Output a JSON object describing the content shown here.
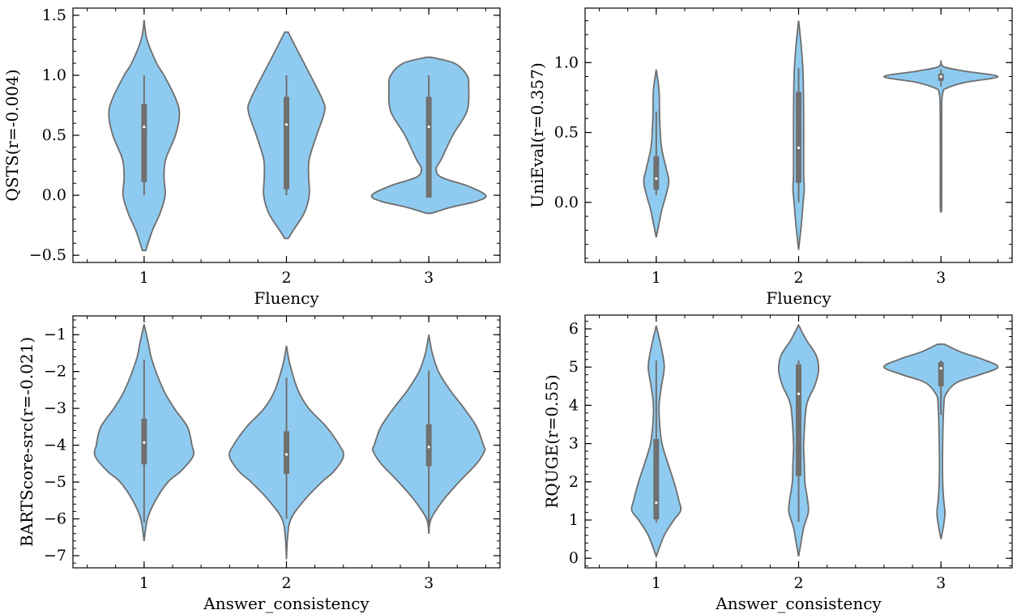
{
  "chart_data": [
    {
      "type": "violin",
      "xlabel": "Fluency",
      "ylabel": "QSTS(r=-0.004)",
      "categories": [
        "1",
        "2",
        "3"
      ],
      "ylim": [
        -0.56,
        1.56
      ],
      "xlim": [
        0.5,
        3.5
      ],
      "yticks": [
        -0.5,
        0.0,
        0.5,
        1.0,
        1.5
      ],
      "ytick_labels": [
        "−0.5",
        "0.0",
        "0.5",
        "1.0",
        "1.5"
      ],
      "yminor": 0.1,
      "violins": [
        {
          "profile": [
            [
              1.46,
              0
            ],
            [
              1.3,
              0.05
            ],
            [
              1.1,
              0.22
            ],
            [
              1.0,
              0.35
            ],
            [
              0.8,
              0.56
            ],
            [
              0.67,
              0.62
            ],
            [
              0.5,
              0.55
            ],
            [
              0.3,
              0.38
            ],
            [
              0.15,
              0.35
            ],
            [
              0.0,
              0.37
            ],
            [
              -0.15,
              0.28
            ],
            [
              -0.3,
              0.14
            ],
            [
              -0.46,
              0.03
            ]
          ],
          "box": {
            "whisker_low": 0.0,
            "q1": 0.11,
            "median": 0.57,
            "q3": 0.76,
            "whisker_high": 1.0
          }
        },
        {
          "profile": [
            [
              1.36,
              0.03
            ],
            [
              1.2,
              0.2
            ],
            [
              1.0,
              0.42
            ],
            [
              0.8,
              0.63
            ],
            [
              0.7,
              0.67
            ],
            [
              0.5,
              0.53
            ],
            [
              0.3,
              0.4
            ],
            [
              0.15,
              0.39
            ],
            [
              0.0,
              0.4
            ],
            [
              -0.15,
              0.31
            ],
            [
              -0.3,
              0.11
            ],
            [
              -0.36,
              0.03
            ]
          ],
          "box": {
            "whisker_low": 0.0,
            "q1": 0.05,
            "median": 0.59,
            "q3": 0.82,
            "whisker_high": 1.0
          }
        },
        {
          "profile": [
            [
              1.15,
              0.05
            ],
            [
              1.1,
              0.45
            ],
            [
              1.0,
              0.67
            ],
            [
              0.9,
              0.7
            ],
            [
              0.7,
              0.67
            ],
            [
              0.5,
              0.42
            ],
            [
              0.3,
              0.22
            ],
            [
              0.22,
              0.13
            ],
            [
              0.15,
              0.22
            ],
            [
              0.08,
              0.67
            ],
            [
              0.0,
              1.0
            ],
            [
              -0.05,
              0.84
            ],
            [
              -0.1,
              0.39
            ],
            [
              -0.15,
              0.05
            ]
          ],
          "box": {
            "whisker_low": -0.02,
            "q1": -0.02,
            "median": 0.57,
            "q3": 0.82,
            "whisker_high": 1.0
          }
        }
      ]
    },
    {
      "type": "violin",
      "xlabel": "Fluency",
      "ylabel": "UniEval(r=0.357)",
      "categories": [
        "1",
        "2",
        "3"
      ],
      "ylim": [
        -0.43,
        1.39
      ],
      "xlim": [
        0.5,
        3.5
      ],
      "yticks": [
        0.0,
        0.5,
        1.0
      ],
      "ytick_labels": [
        "0.0",
        "0.5",
        "1.0"
      ],
      "yminor": 0.1,
      "violins": [
        {
          "profile": [
            [
              0.95,
              0
            ],
            [
              0.8,
              0.05
            ],
            [
              0.6,
              0.06
            ],
            [
              0.4,
              0.09
            ],
            [
              0.25,
              0.17
            ],
            [
              0.15,
              0.22
            ],
            [
              0.05,
              0.17
            ],
            [
              -0.05,
              0.1
            ],
            [
              -0.15,
              0.05
            ],
            [
              -0.25,
              0
            ]
          ],
          "box": {
            "whisker_low": 0.05,
            "q1": 0.09,
            "median": 0.17,
            "q3": 0.33,
            "whisker_high": 0.65
          }
        },
        {
          "profile": [
            [
              1.3,
              0
            ],
            [
              1.1,
              0.05
            ],
            [
              0.9,
              0.08
            ],
            [
              0.6,
              0.09
            ],
            [
              0.4,
              0.09
            ],
            [
              0.2,
              0.09
            ],
            [
              0.1,
              0.1
            ],
            [
              0.0,
              0.08
            ],
            [
              -0.15,
              0.05
            ],
            [
              -0.34,
              0
            ]
          ],
          "box": {
            "whisker_low": 0.0,
            "q1": 0.14,
            "median": 0.39,
            "q3": 0.79,
            "whisker_high": 0.96
          }
        },
        {
          "profile": [
            [
              1.01,
              0
            ],
            [
              0.97,
              0.05
            ],
            [
              0.94,
              0.4
            ],
            [
              0.9,
              1.0
            ],
            [
              0.86,
              0.45
            ],
            [
              0.82,
              0.12
            ],
            [
              0.78,
              0.03
            ],
            [
              0.6,
              0.012
            ],
            [
              0.0,
              0.012
            ],
            [
              -0.06,
              0
            ]
          ],
          "box": {
            "whisker_low": 0.83,
            "q1": 0.87,
            "median": 0.9,
            "q3": 0.92,
            "whisker_high": 0.95
          }
        }
      ]
    },
    {
      "type": "violin",
      "xlabel": "Answer_consistency",
      "ylabel": "BARTScore-src(r=-0.021)",
      "categories": [
        "1",
        "2",
        "3"
      ],
      "ylim": [
        -7.33,
        -0.49
      ],
      "xlim": [
        0.5,
        3.5
      ],
      "yticks": [
        -7,
        -6,
        -5,
        -4,
        -3,
        -2,
        -1
      ],
      "ytick_labels": [
        "−7",
        "−6",
        "−5",
        "−4",
        "−3",
        "−2",
        "−1"
      ],
      "yminor": 0.2,
      "violins": [
        {
          "profile": [
            [
              -0.72,
              0
            ],
            [
              -1.2,
              0.07
            ],
            [
              -1.7,
              0.14
            ],
            [
              -2.5,
              0.34
            ],
            [
              -3.0,
              0.53
            ],
            [
              -3.5,
              0.76
            ],
            [
              -4.0,
              0.84
            ],
            [
              -4.3,
              0.86
            ],
            [
              -4.7,
              0.65
            ],
            [
              -5.0,
              0.42
            ],
            [
              -5.5,
              0.2
            ],
            [
              -6.0,
              0.06
            ],
            [
              -6.6,
              0
            ]
          ],
          "box": {
            "whisker_low": -6.1,
            "q1": -4.52,
            "median": -3.93,
            "q3": -3.28,
            "whisker_high": -1.68
          }
        },
        {
          "profile": [
            [
              -1.3,
              0
            ],
            [
              -1.8,
              0.06
            ],
            [
              -2.5,
              0.2
            ],
            [
              -3.0,
              0.39
            ],
            [
              -3.5,
              0.7
            ],
            [
              -4.0,
              0.93
            ],
            [
              -4.3,
              1.0
            ],
            [
              -4.7,
              0.84
            ],
            [
              -5.0,
              0.62
            ],
            [
              -5.5,
              0.31
            ],
            [
              -6.0,
              0.08
            ],
            [
              -6.5,
              0.02
            ],
            [
              -7.1,
              0
            ]
          ],
          "box": {
            "whisker_low": -6.0,
            "q1": -4.78,
            "median": -4.25,
            "q3": -3.62,
            "whisker_high": -2.17
          }
        },
        {
          "profile": [
            [
              -1.0,
              0
            ],
            [
              -1.5,
              0.06
            ],
            [
              -2.0,
              0.17
            ],
            [
              -2.5,
              0.37
            ],
            [
              -3.0,
              0.62
            ],
            [
              -3.5,
              0.84
            ],
            [
              -4.0,
              0.96
            ],
            [
              -4.15,
              0.98
            ],
            [
              -4.5,
              0.84
            ],
            [
              -5.0,
              0.53
            ],
            [
              -5.5,
              0.25
            ],
            [
              -6.0,
              0.04
            ],
            [
              -6.4,
              0
            ]
          ],
          "box": {
            "whisker_low": -6.4,
            "q1": -4.57,
            "median": -4.05,
            "q3": -3.43,
            "whisker_high": -1.97
          }
        }
      ]
    },
    {
      "type": "violin",
      "xlabel": "Answer_consistency",
      "ylabel": "RQUGE(r=0.55)",
      "categories": [
        "1",
        "2",
        "3"
      ],
      "ylim": [
        -0.25,
        6.36
      ],
      "xlim": [
        0.5,
        3.5
      ],
      "yticks": [
        0,
        1,
        2,
        3,
        4,
        5,
        6
      ],
      "ytick_labels": [
        "0",
        "1",
        "2",
        "3",
        "4",
        "5",
        "6"
      ],
      "yminor": 0.2,
      "violins": [
        {
          "profile": [
            [
              6.08,
              0
            ],
            [
              5.5,
              0.09
            ],
            [
              5.0,
              0.14
            ],
            [
              4.5,
              0.09
            ],
            [
              4.0,
              0.05
            ],
            [
              3.5,
              0.06
            ],
            [
              3.0,
              0.1
            ],
            [
              2.5,
              0.2
            ],
            [
              2.0,
              0.31
            ],
            [
              1.5,
              0.4
            ],
            [
              1.25,
              0.43
            ],
            [
              1.0,
              0.31
            ],
            [
              0.6,
              0.14
            ],
            [
              0.05,
              0
            ]
          ],
          "box": {
            "whisker_low": 0.93,
            "q1": 1.02,
            "median": 1.45,
            "q3": 3.12,
            "whisker_high": 5.17
          }
        },
        {
          "profile": [
            [
              6.1,
              0
            ],
            [
              5.7,
              0.14
            ],
            [
              5.3,
              0.31
            ],
            [
              4.9,
              0.35
            ],
            [
              4.5,
              0.28
            ],
            [
              4.0,
              0.14
            ],
            [
              3.0,
              0.09
            ],
            [
              2.5,
              0.1
            ],
            [
              2.0,
              0.11
            ],
            [
              1.5,
              0.16
            ],
            [
              1.2,
              0.17
            ],
            [
              0.8,
              0.09
            ],
            [
              0.3,
              0.03
            ],
            [
              0.05,
              0
            ]
          ],
          "box": {
            "whisker_low": 0.95,
            "q1": 2.15,
            "median": 4.3,
            "q3": 5.07,
            "whisker_high": 5.18
          }
        },
        {
          "profile": [
            [
              5.6,
              0.06
            ],
            [
              5.4,
              0.34
            ],
            [
              5.2,
              0.74
            ],
            [
              5.0,
              1.0
            ],
            [
              4.8,
              0.68
            ],
            [
              4.6,
              0.28
            ],
            [
              4.3,
              0.09
            ],
            [
              4.0,
              0.05
            ],
            [
              3.0,
              0.03
            ],
            [
              2.0,
              0.03
            ],
            [
              1.5,
              0.05
            ],
            [
              1.2,
              0.07
            ],
            [
              0.9,
              0.05
            ],
            [
              0.5,
              0
            ]
          ],
          "box": {
            "whisker_low": 3.75,
            "q1": 4.5,
            "median": 4.97,
            "q3": 5.13,
            "whisker_high": 5.18
          }
        }
      ]
    }
  ],
  "colors": {
    "violin_fill": "#8fcbf0",
    "violin_edge": "#6e6e6e",
    "box": "#707070",
    "median": "#ffffff",
    "axes": "#000000"
  }
}
